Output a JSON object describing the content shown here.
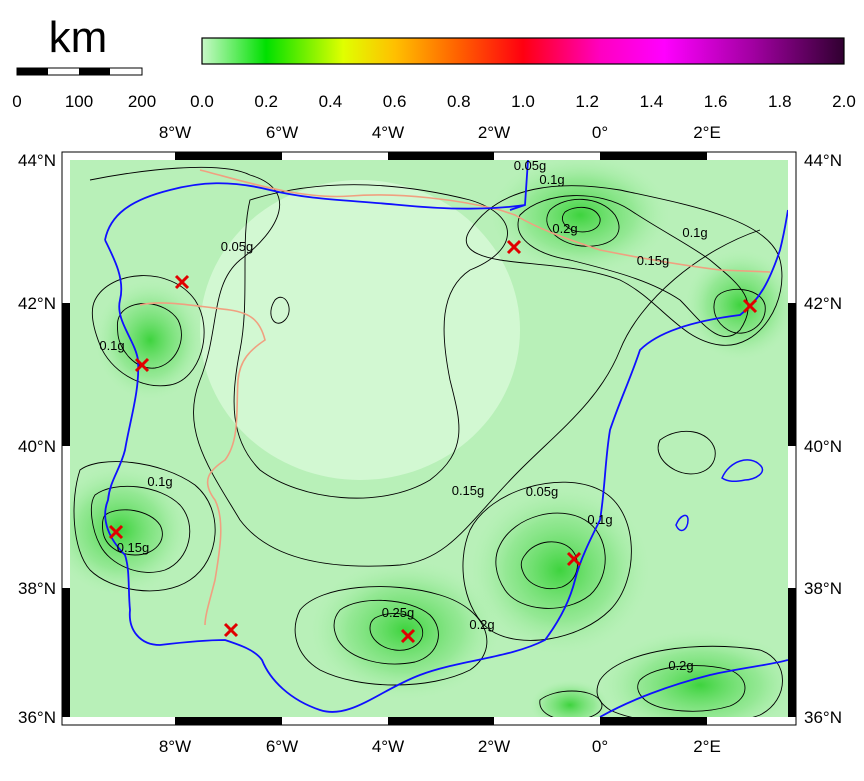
{
  "scale_bar": {
    "unit": "km",
    "ticks": [
      "0",
      "100",
      "200"
    ]
  },
  "colorbar": {
    "ticks": [
      "0.0",
      "0.2",
      "0.4",
      "0.6",
      "0.8",
      "1.0",
      "1.2",
      "1.4",
      "1.6",
      "1.8",
      "2.0"
    ],
    "colors": [
      "#c8f8c8",
      "#00e000",
      "#ffff00",
      "#ff8000",
      "#ff0000",
      "#ff00ff",
      "#a000a0",
      "#400040"
    ]
  },
  "map": {
    "lon_labels": [
      "8°W",
      "6°W",
      "4°W",
      "2°W",
      "0°",
      "2°E"
    ],
    "lat_labels": [
      "44°N",
      "42°N",
      "40°N",
      "38°N",
      "36°N"
    ],
    "contour_labels": [
      "0.05g",
      "0.1g",
      "0.2g",
      "0.1g",
      "0.15g",
      "0.05g",
      "0.1g",
      "0.1g",
      "0.15g",
      "0.05g",
      "0.1g",
      "0.15g",
      "0.25g",
      "0.2g",
      "0.2g"
    ],
    "coastline_color": "#1010ff",
    "border_color": "#f0a080",
    "marker_color": "#e00000"
  }
}
